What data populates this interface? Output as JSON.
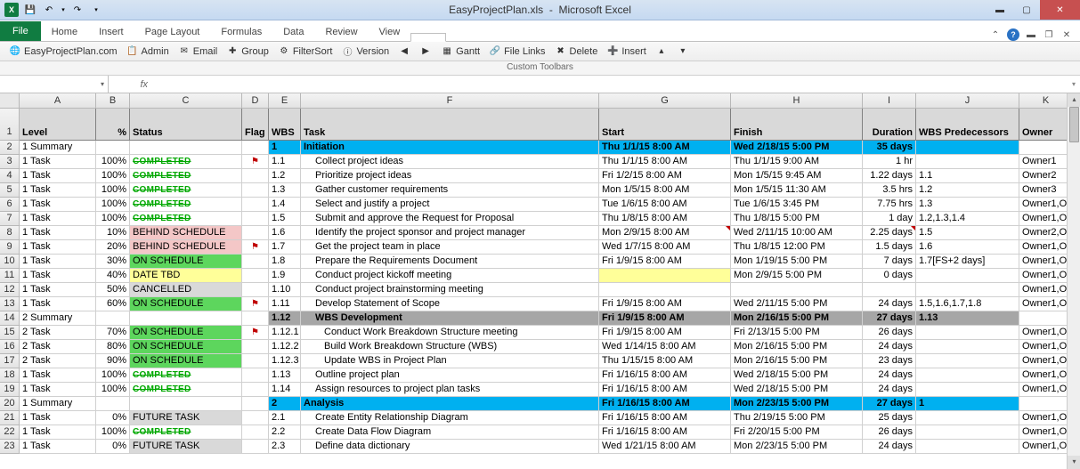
{
  "window": {
    "title_file": "EasyProjectPlan.xls",
    "title_app": "Microsoft Excel"
  },
  "qat": {
    "undo": "↶",
    "redo": "↷",
    "dropdown": "▾"
  },
  "ribbon": {
    "file": "File",
    "tabs": [
      "Home",
      "Insert",
      "Page Layout",
      "Formulas",
      "Data",
      "Review",
      "View",
      ""
    ]
  },
  "toolbar": {
    "items": [
      {
        "icon": "🌐",
        "label": "EasyProjectPlan.com"
      },
      {
        "icon": "📋",
        "label": "Admin"
      },
      {
        "icon": "✉",
        "label": "Email"
      },
      {
        "icon": "✚",
        "label": "Group"
      },
      {
        "icon": "⚙",
        "label": "FilterSort"
      },
      {
        "icon": "ⓘ",
        "label": "Version"
      },
      {
        "icon": "◀",
        "label": ""
      },
      {
        "icon": "▶",
        "label": ""
      },
      {
        "icon": "▦",
        "label": "Gantt"
      },
      {
        "icon": "🔗",
        "label": "File Links"
      },
      {
        "icon": "✖",
        "label": "Delete"
      },
      {
        "icon": "➕",
        "label": "Insert"
      },
      {
        "icon": "▴",
        "label": ""
      },
      {
        "icon": "▾",
        "label": ""
      }
    ],
    "group_label": "Custom Toolbars"
  },
  "formula": {
    "name_box": "",
    "fx": "fx",
    "value": ""
  },
  "columns": [
    "A",
    "B",
    "C",
    "D",
    "E",
    "F",
    "G",
    "H",
    "I",
    "J",
    "K"
  ],
  "headers": [
    "Level",
    "%",
    "Status",
    "Flag",
    "WBS",
    "Task",
    "Start",
    "Finish",
    "Duration",
    "WBS Predecessors",
    "Owner"
  ],
  "status_colors": {
    "completed_text": "#00a800",
    "behind_bg": "#f4c7c7",
    "onsched_bg": "#5dd65d",
    "tbd_bg": "#ffff99",
    "cancelled_bg": "#d9d9d9",
    "future_bg": "#d9d9d9",
    "summary_blue": "#00b0f0",
    "summary_gray": "#a6a6a6"
  },
  "rows": [
    {
      "n": 1,
      "level": "1 Summary",
      "pct": "",
      "status": "",
      "flag": "",
      "wbs": "1",
      "task": "Initiation",
      "start": "Thu 1/1/15 8:00 AM",
      "finish": "Wed 2/18/15 5:00 PM",
      "dur": "35 days",
      "pred": "",
      "owner": "",
      "type": "sum-blue",
      "bold": true
    },
    {
      "n": 2,
      "level": "1 Task",
      "pct": "100%",
      "status": "COMPLETED",
      "flag": "⚑",
      "wbs": "1.1",
      "task": "Collect project ideas",
      "start": "Thu 1/1/15 8:00 AM",
      "finish": "Thu 1/1/15 9:00 AM",
      "dur": "1 hr",
      "pred": "",
      "owner": "Owner1",
      "stype": "completed",
      "indent": 1
    },
    {
      "n": 3,
      "level": "1 Task",
      "pct": "100%",
      "status": "COMPLETED",
      "flag": "",
      "wbs": "1.2",
      "task": "Prioritize project ideas",
      "start": "Fri 1/2/15 8:00 AM",
      "finish": "Mon 1/5/15 9:45 AM",
      "dur": "1.22 days",
      "pred": "1.1",
      "owner": "Owner2",
      "stype": "completed",
      "indent": 1
    },
    {
      "n": 4,
      "level": "1 Task",
      "pct": "100%",
      "status": "COMPLETED",
      "flag": "",
      "wbs": "1.3",
      "task": "Gather customer requirements",
      "start": "Mon 1/5/15 8:00 AM",
      "finish": "Mon 1/5/15 11:30 AM",
      "dur": "3.5 hrs",
      "pred": "1.2",
      "owner": "Owner3",
      "stype": "completed",
      "indent": 1
    },
    {
      "n": 5,
      "level": "1 Task",
      "pct": "100%",
      "status": "COMPLETED",
      "flag": "",
      "wbs": "1.4",
      "task": "Select and justify a project",
      "start": "Tue 1/6/15 8:00 AM",
      "finish": "Tue 1/6/15 3:45 PM",
      "dur": "7.75 hrs",
      "pred": "1.3",
      "owner": "Owner1,O",
      "stype": "completed",
      "indent": 1
    },
    {
      "n": 6,
      "level": "1 Task",
      "pct": "100%",
      "status": "COMPLETED",
      "flag": "",
      "wbs": "1.5",
      "task": "Submit and approve the Request for Proposal",
      "start": "Thu 1/8/15 8:00 AM",
      "finish": "Thu 1/8/15 5:00 PM",
      "dur": "1 day",
      "pred": "1.2,1.3,1.4",
      "owner": "Owner1,O",
      "stype": "completed",
      "indent": 1
    },
    {
      "n": 7,
      "level": "1 Task",
      "pct": "10%",
      "status": "BEHIND SCHEDULE",
      "flag": "",
      "wbs": "1.6",
      "task": "Identify the project sponsor and project manager",
      "start": "Mon 2/9/15 8:00 AM",
      "finish": "Wed 2/11/15 10:00 AM",
      "dur": "2.25 days",
      "pred": "1.5",
      "owner": "Owner2,O",
      "stype": "behind",
      "indent": 1,
      "tri_start": true,
      "tri_dur": true
    },
    {
      "n": 8,
      "level": "1 Task",
      "pct": "20%",
      "status": "BEHIND SCHEDULE",
      "flag": "⚑",
      "wbs": "1.7",
      "task": "Get the project team in place",
      "start": "Wed 1/7/15 8:00 AM",
      "finish": "Thu 1/8/15 12:00 PM",
      "dur": "1.5 days",
      "pred": "1.6",
      "owner": "Owner1,O",
      "stype": "behind",
      "indent": 1
    },
    {
      "n": 9,
      "level": "1 Task",
      "pct": "30%",
      "status": "ON SCHEDULE",
      "flag": "",
      "wbs": "1.8",
      "task": "Prepare the Requirements Document",
      "start": "Fri 1/9/15 8:00 AM",
      "finish": "Mon 1/19/15 5:00 PM",
      "dur": "7 days",
      "pred": "1.7[FS+2 days]",
      "owner": "Owner1,O",
      "stype": "onsched",
      "indent": 1
    },
    {
      "n": 10,
      "level": "1 Task",
      "pct": "40%",
      "status": "DATE TBD",
      "flag": "",
      "wbs": "1.9",
      "task": "Conduct project kickoff meeting",
      "start": "",
      "finish": "Mon 2/9/15 5:00 PM",
      "dur": "0 days",
      "pred": "",
      "owner": "Owner1,O",
      "stype": "tbd",
      "indent": 1,
      "ylw_start": true
    },
    {
      "n": 11,
      "level": "1 Task",
      "pct": "50%",
      "status": "CANCELLED",
      "flag": "",
      "wbs": "1.10",
      "task": "Conduct project brainstorming meeting",
      "start": "",
      "finish": "",
      "dur": "",
      "pred": "",
      "owner": "Owner1,O",
      "stype": "cancelled",
      "indent": 1
    },
    {
      "n": 12,
      "level": "1 Task",
      "pct": "60%",
      "status": "ON SCHEDULE",
      "flag": "⚑",
      "wbs": "1.11",
      "task": "Develop Statement of Scope",
      "start": "Fri 1/9/15 8:00 AM",
      "finish": "Wed 2/11/15 5:00 PM",
      "dur": "24 days",
      "pred": "1.5,1.6,1.7,1.8",
      "owner": "Owner1,O",
      "stype": "onsched",
      "indent": 1
    },
    {
      "n": 13,
      "level": "2 Summary",
      "pct": "",
      "status": "",
      "flag": "",
      "wbs": "1.12",
      "task": "WBS Development",
      "start": "Fri 1/9/15 8:00 AM",
      "finish": "Mon 2/16/15 5:00 PM",
      "dur": "27 days",
      "pred": "1.13",
      "owner": "",
      "type": "sum-gray",
      "bold": true,
      "indent": 1
    },
    {
      "n": 14,
      "level": "2 Task",
      "pct": "70%",
      "status": "ON SCHEDULE",
      "flag": "⚑",
      "wbs": "1.12.1",
      "task": "Conduct Work Breakdown Structure meeting",
      "start": "Fri 1/9/15 8:00 AM",
      "finish": "Fri 2/13/15 5:00 PM",
      "dur": "26 days",
      "pred": "",
      "owner": "Owner1,O",
      "stype": "onsched",
      "indent": 2
    },
    {
      "n": 15,
      "level": "2 Task",
      "pct": "80%",
      "status": "ON SCHEDULE",
      "flag": "",
      "wbs": "1.12.2",
      "task": "Build Work Breakdown Structure (WBS)",
      "start": "Wed 1/14/15 8:00 AM",
      "finish": "Mon 2/16/15 5:00 PM",
      "dur": "24 days",
      "pred": "",
      "owner": "Owner1,O",
      "stype": "onsched",
      "indent": 2
    },
    {
      "n": 16,
      "level": "2 Task",
      "pct": "90%",
      "status": "ON SCHEDULE",
      "flag": "",
      "wbs": "1.12.3",
      "task": "Update WBS in Project Plan",
      "start": "Thu 1/15/15 8:00 AM",
      "finish": "Mon 2/16/15 5:00 PM",
      "dur": "23 days",
      "pred": "",
      "owner": "Owner1,O",
      "stype": "onsched",
      "indent": 2
    },
    {
      "n": 17,
      "level": "1 Task",
      "pct": "100%",
      "status": "COMPLETED",
      "flag": "",
      "wbs": "1.13",
      "task": "Outline project plan",
      "start": "Fri 1/16/15 8:00 AM",
      "finish": "Wed 2/18/15 5:00 PM",
      "dur": "24 days",
      "pred": "",
      "owner": "Owner1,O",
      "stype": "completed",
      "indent": 1
    },
    {
      "n": 18,
      "level": "1 Task",
      "pct": "100%",
      "status": "COMPLETED",
      "flag": "",
      "wbs": "1.14",
      "task": "Assign resources to project plan tasks",
      "start": "Fri 1/16/15 8:00 AM",
      "finish": "Wed 2/18/15 5:00 PM",
      "dur": "24 days",
      "pred": "",
      "owner": "Owner1,O",
      "stype": "completed",
      "indent": 1
    },
    {
      "n": 19,
      "level": "1 Summary",
      "pct": "",
      "status": "",
      "flag": "",
      "wbs": "2",
      "task": "Analysis",
      "start": "Fri 1/16/15 8:00 AM",
      "finish": "Mon 2/23/15 5:00 PM",
      "dur": "27 days",
      "pred": "1",
      "owner": "",
      "type": "sum-blue",
      "bold": true
    },
    {
      "n": 20,
      "level": "1 Task",
      "pct": "0%",
      "status": "FUTURE TASK",
      "flag": "",
      "wbs": "2.1",
      "task": "Create Entity Relationship Diagram",
      "start": "Fri 1/16/15 8:00 AM",
      "finish": "Thu 2/19/15 5:00 PM",
      "dur": "25 days",
      "pred": "",
      "owner": "Owner1,O",
      "stype": "future",
      "indent": 1
    },
    {
      "n": 21,
      "level": "1 Task",
      "pct": "100%",
      "status": "COMPLETED",
      "flag": "",
      "wbs": "2.2",
      "task": "Create Data Flow Diagram",
      "start": "Fri 1/16/15 8:00 AM",
      "finish": "Fri 2/20/15 5:00 PM",
      "dur": "26 days",
      "pred": "",
      "owner": "Owner1,O",
      "stype": "completed",
      "indent": 1
    },
    {
      "n": 22,
      "level": "1 Task",
      "pct": "0%",
      "status": "FUTURE TASK",
      "flag": "",
      "wbs": "2.3",
      "task": "Define data dictionary",
      "start": "Wed 1/21/15 8:00 AM",
      "finish": "Mon 2/23/15 5:00 PM",
      "dur": "24 days",
      "pred": "",
      "owner": "Owner1,O",
      "stype": "future",
      "indent": 1
    }
  ]
}
